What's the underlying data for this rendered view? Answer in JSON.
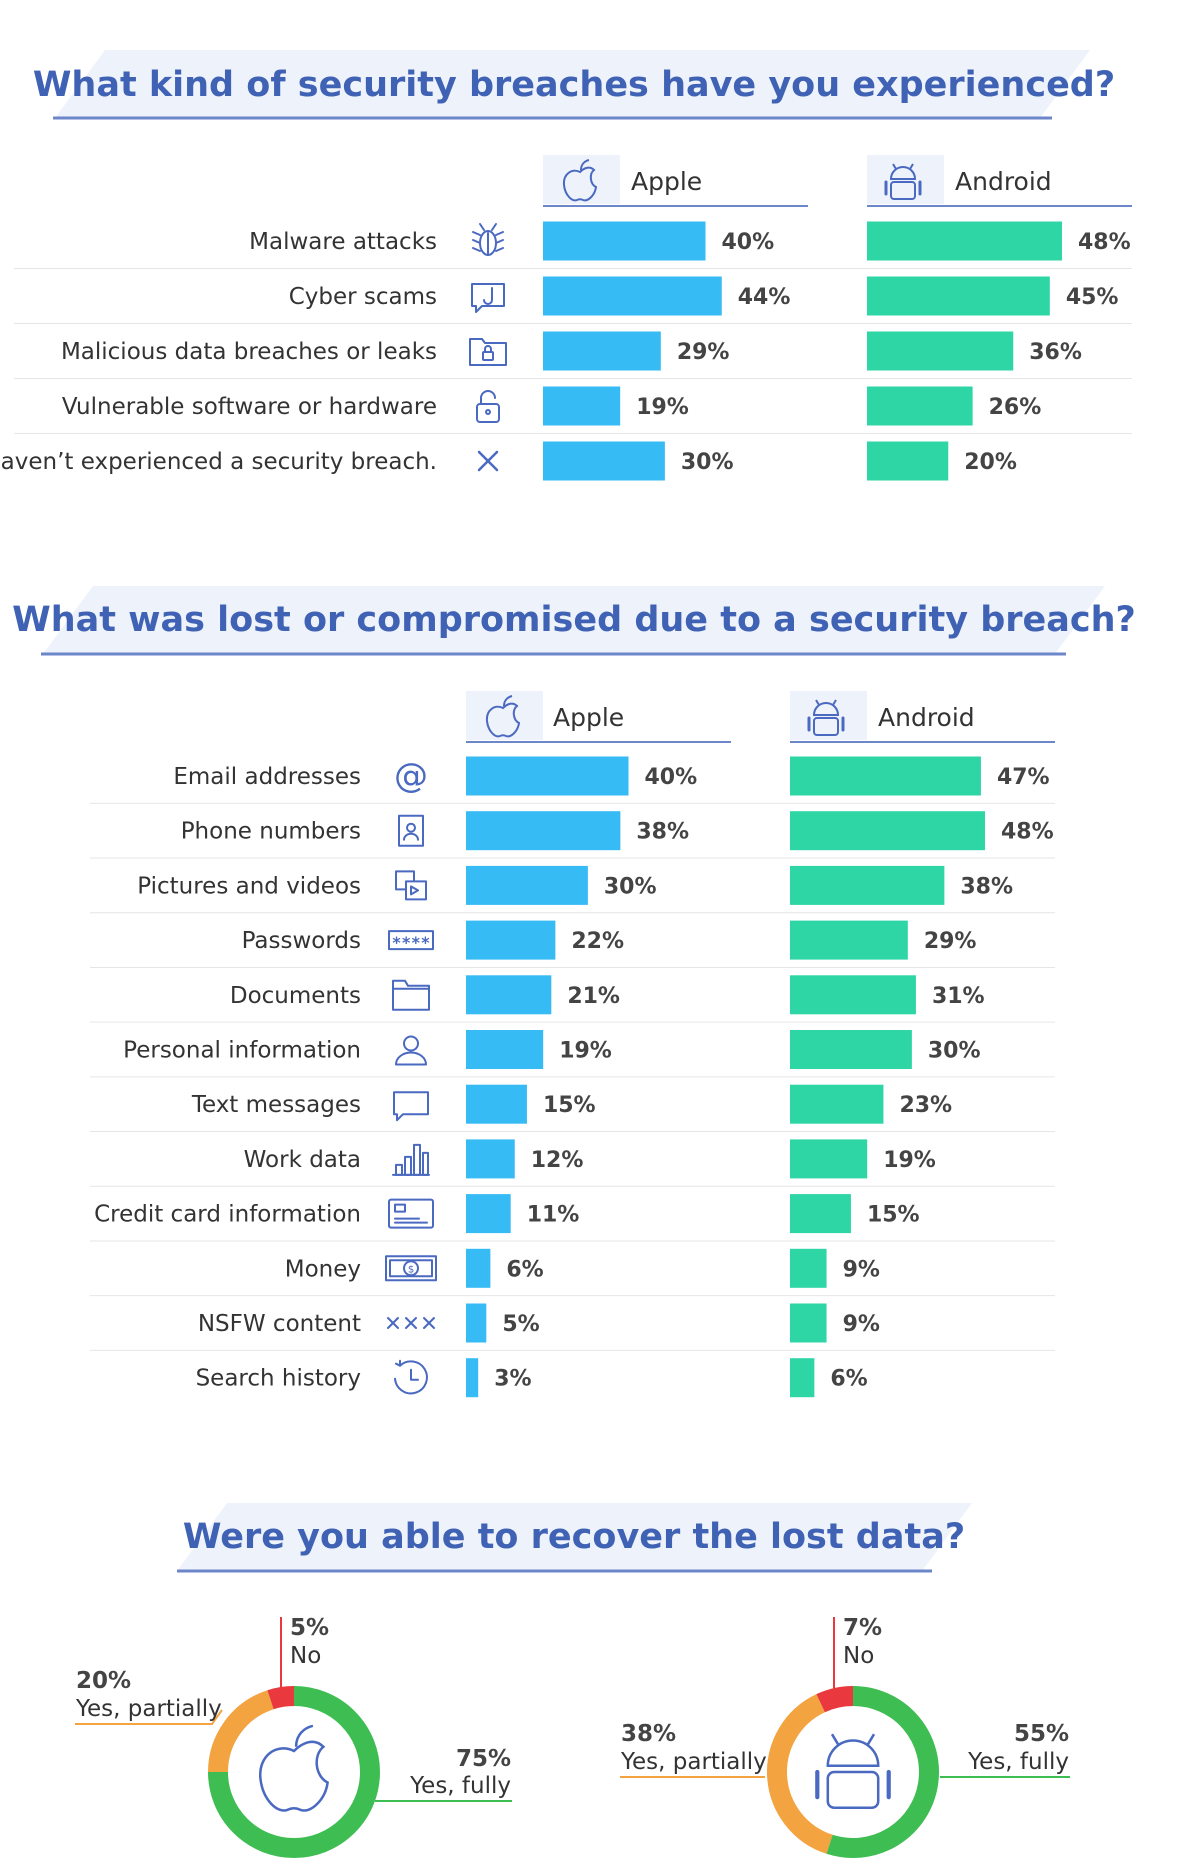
{
  "colors": {
    "title": "#3f62b4",
    "banner": "#eef2fb",
    "rule": "#6b86c9",
    "apple": "#36bbf4",
    "android": "#2ed6a6",
    "icon": "#4a69c0",
    "divider": "#e6e6e6",
    "pct": "#444444",
    "label": "#333333",
    "donut_green": "#3ebe52",
    "donut_orange": "#f3a340",
    "donut_red": "#e9383e"
  },
  "chart_data": [
    {
      "type": "bar",
      "title": "What kind of security breaches have you experienced?",
      "headers": {
        "apple": "Apple",
        "android": "Android"
      },
      "categories": [
        "Malware attacks",
        "Cyber scams",
        "Malicious data breaches or leaks",
        "Vulnerable software or hardware",
        "I haven’t experienced a security breach."
      ],
      "icons": [
        "bug-icon",
        "hook-icon",
        "folder-lock-icon",
        "padlock-icon",
        "x-icon"
      ],
      "series": [
        {
          "name": "Apple",
          "values": [
            40,
            44,
            29,
            19,
            30
          ],
          "labels": [
            "40%",
            "44%",
            "29%",
            "19%",
            "30%"
          ]
        },
        {
          "name": "Android",
          "values": [
            48,
            45,
            36,
            26,
            20
          ],
          "labels": [
            "48%",
            "45%",
            "36%",
            "26%",
            "20%"
          ]
        }
      ],
      "unit": "%"
    },
    {
      "type": "bar",
      "title": "What was lost or compromised due to a security breach?",
      "headers": {
        "apple": "Apple",
        "android": "Android"
      },
      "categories": [
        "Email addresses",
        "Phone numbers",
        "Pictures and videos",
        "Passwords",
        "Documents",
        "Personal information",
        "Text messages",
        "Work data",
        "Credit card information",
        "Money",
        "NSFW content",
        "Search history"
      ],
      "icons": [
        "at-icon",
        "contact-icon",
        "pictures-icon",
        "password-icon",
        "folder-icon",
        "person-icon",
        "message-icon",
        "bar-chart-icon",
        "credit-card-icon",
        "money-icon",
        "xxx-icon",
        "clock-icon"
      ],
      "series": [
        {
          "name": "Apple",
          "values": [
            40,
            38,
            30,
            22,
            21,
            19,
            15,
            12,
            11,
            6,
            5,
            3
          ],
          "labels": [
            "40%",
            "38%",
            "30%",
            "22%",
            "21%",
            "19%",
            "15%",
            "12%",
            "11%",
            "6%",
            "5%",
            "3%"
          ]
        },
        {
          "name": "Android",
          "values": [
            47,
            48,
            38,
            29,
            31,
            30,
            23,
            19,
            15,
            9,
            9,
            6
          ],
          "labels": [
            "47%",
            "48%",
            "38%",
            "29%",
            "31%",
            "30%",
            "23%",
            "19%",
            "15%",
            "9%",
            "9%",
            "6%"
          ]
        }
      ],
      "unit": "%"
    },
    {
      "type": "pie",
      "title": "Were you able to recover the lost data?",
      "donuts": [
        {
          "name": "Apple",
          "slices": [
            {
              "label": "Yes, fully",
              "value": 75,
              "pct": "75%"
            },
            {
              "label": "Yes, partially",
              "value": 20,
              "pct": "20%"
            },
            {
              "label": "No",
              "value": 5,
              "pct": "5%"
            }
          ]
        },
        {
          "name": "Android",
          "slices": [
            {
              "label": "Yes, fully",
              "value": 55,
              "pct": "55%"
            },
            {
              "label": "Yes, partially",
              "value": 38,
              "pct": "38%"
            },
            {
              "label": "No",
              "value": 7,
              "pct": "7%"
            }
          ]
        }
      ]
    }
  ]
}
